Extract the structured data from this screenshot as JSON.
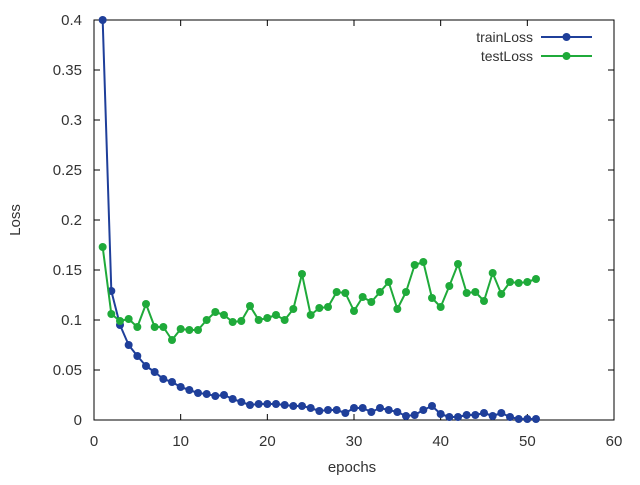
{
  "chart_data": {
    "type": "line",
    "title": "",
    "xlabel": "epochs",
    "ylabel": "Loss",
    "xlim": [
      0,
      60
    ],
    "ylim": [
      0,
      0.4
    ],
    "x_ticks": [
      "0",
      "10",
      "20",
      "30",
      "40",
      "50",
      "60"
    ],
    "y_ticks": [
      "0",
      "0.05",
      "0.1",
      "0.15",
      "0.2",
      "0.25",
      "0.3",
      "0.35",
      "0.4"
    ],
    "grid": false,
    "legend_position": "top-right",
    "series": [
      {
        "name": "trainLoss",
        "color": "#1f3f9a",
        "x": [
          1,
          2,
          3,
          4,
          5,
          6,
          7,
          8,
          9,
          10,
          11,
          12,
          13,
          14,
          15,
          16,
          17,
          18,
          19,
          20,
          21,
          22,
          23,
          24,
          25,
          26,
          27,
          28,
          29,
          30,
          31,
          32,
          33,
          34,
          35,
          36,
          37,
          38,
          39,
          40,
          41,
          42,
          43,
          44,
          45,
          46,
          47,
          48,
          49,
          50,
          51
        ],
        "values": [
          0.4,
          0.129,
          0.095,
          0.075,
          0.064,
          0.054,
          0.048,
          0.041,
          0.038,
          0.033,
          0.03,
          0.027,
          0.026,
          0.024,
          0.025,
          0.021,
          0.018,
          0.015,
          0.016,
          0.016,
          0.016,
          0.015,
          0.014,
          0.014,
          0.012,
          0.009,
          0.01,
          0.01,
          0.007,
          0.012,
          0.012,
          0.008,
          0.012,
          0.01,
          0.008,
          0.004,
          0.005,
          0.01,
          0.014,
          0.006,
          0.003,
          0.003,
          0.005,
          0.005,
          0.007,
          0.004,
          0.007,
          0.003,
          0.001,
          0.001,
          0.001
        ]
      },
      {
        "name": "testLoss",
        "color": "#1faa3a",
        "x": [
          1,
          2,
          3,
          4,
          5,
          6,
          7,
          8,
          9,
          10,
          11,
          12,
          13,
          14,
          15,
          16,
          17,
          18,
          19,
          20,
          21,
          22,
          23,
          24,
          25,
          26,
          27,
          28,
          29,
          30,
          31,
          32,
          33,
          34,
          35,
          36,
          37,
          38,
          39,
          40,
          41,
          42,
          43,
          44,
          45,
          46,
          47,
          48,
          49,
          50,
          51
        ],
        "values": [
          0.173,
          0.106,
          0.099,
          0.101,
          0.093,
          0.116,
          0.093,
          0.093,
          0.08,
          0.091,
          0.09,
          0.09,
          0.1,
          0.108,
          0.105,
          0.098,
          0.099,
          0.114,
          0.1,
          0.102,
          0.105,
          0.1,
          0.111,
          0.146,
          0.105,
          0.112,
          0.113,
          0.128,
          0.127,
          0.109,
          0.123,
          0.118,
          0.128,
          0.138,
          0.111,
          0.128,
          0.155,
          0.158,
          0.122,
          0.113,
          0.134,
          0.156,
          0.127,
          0.128,
          0.119,
          0.147,
          0.126,
          0.138,
          0.137,
          0.138,
          0.141
        ]
      }
    ]
  }
}
